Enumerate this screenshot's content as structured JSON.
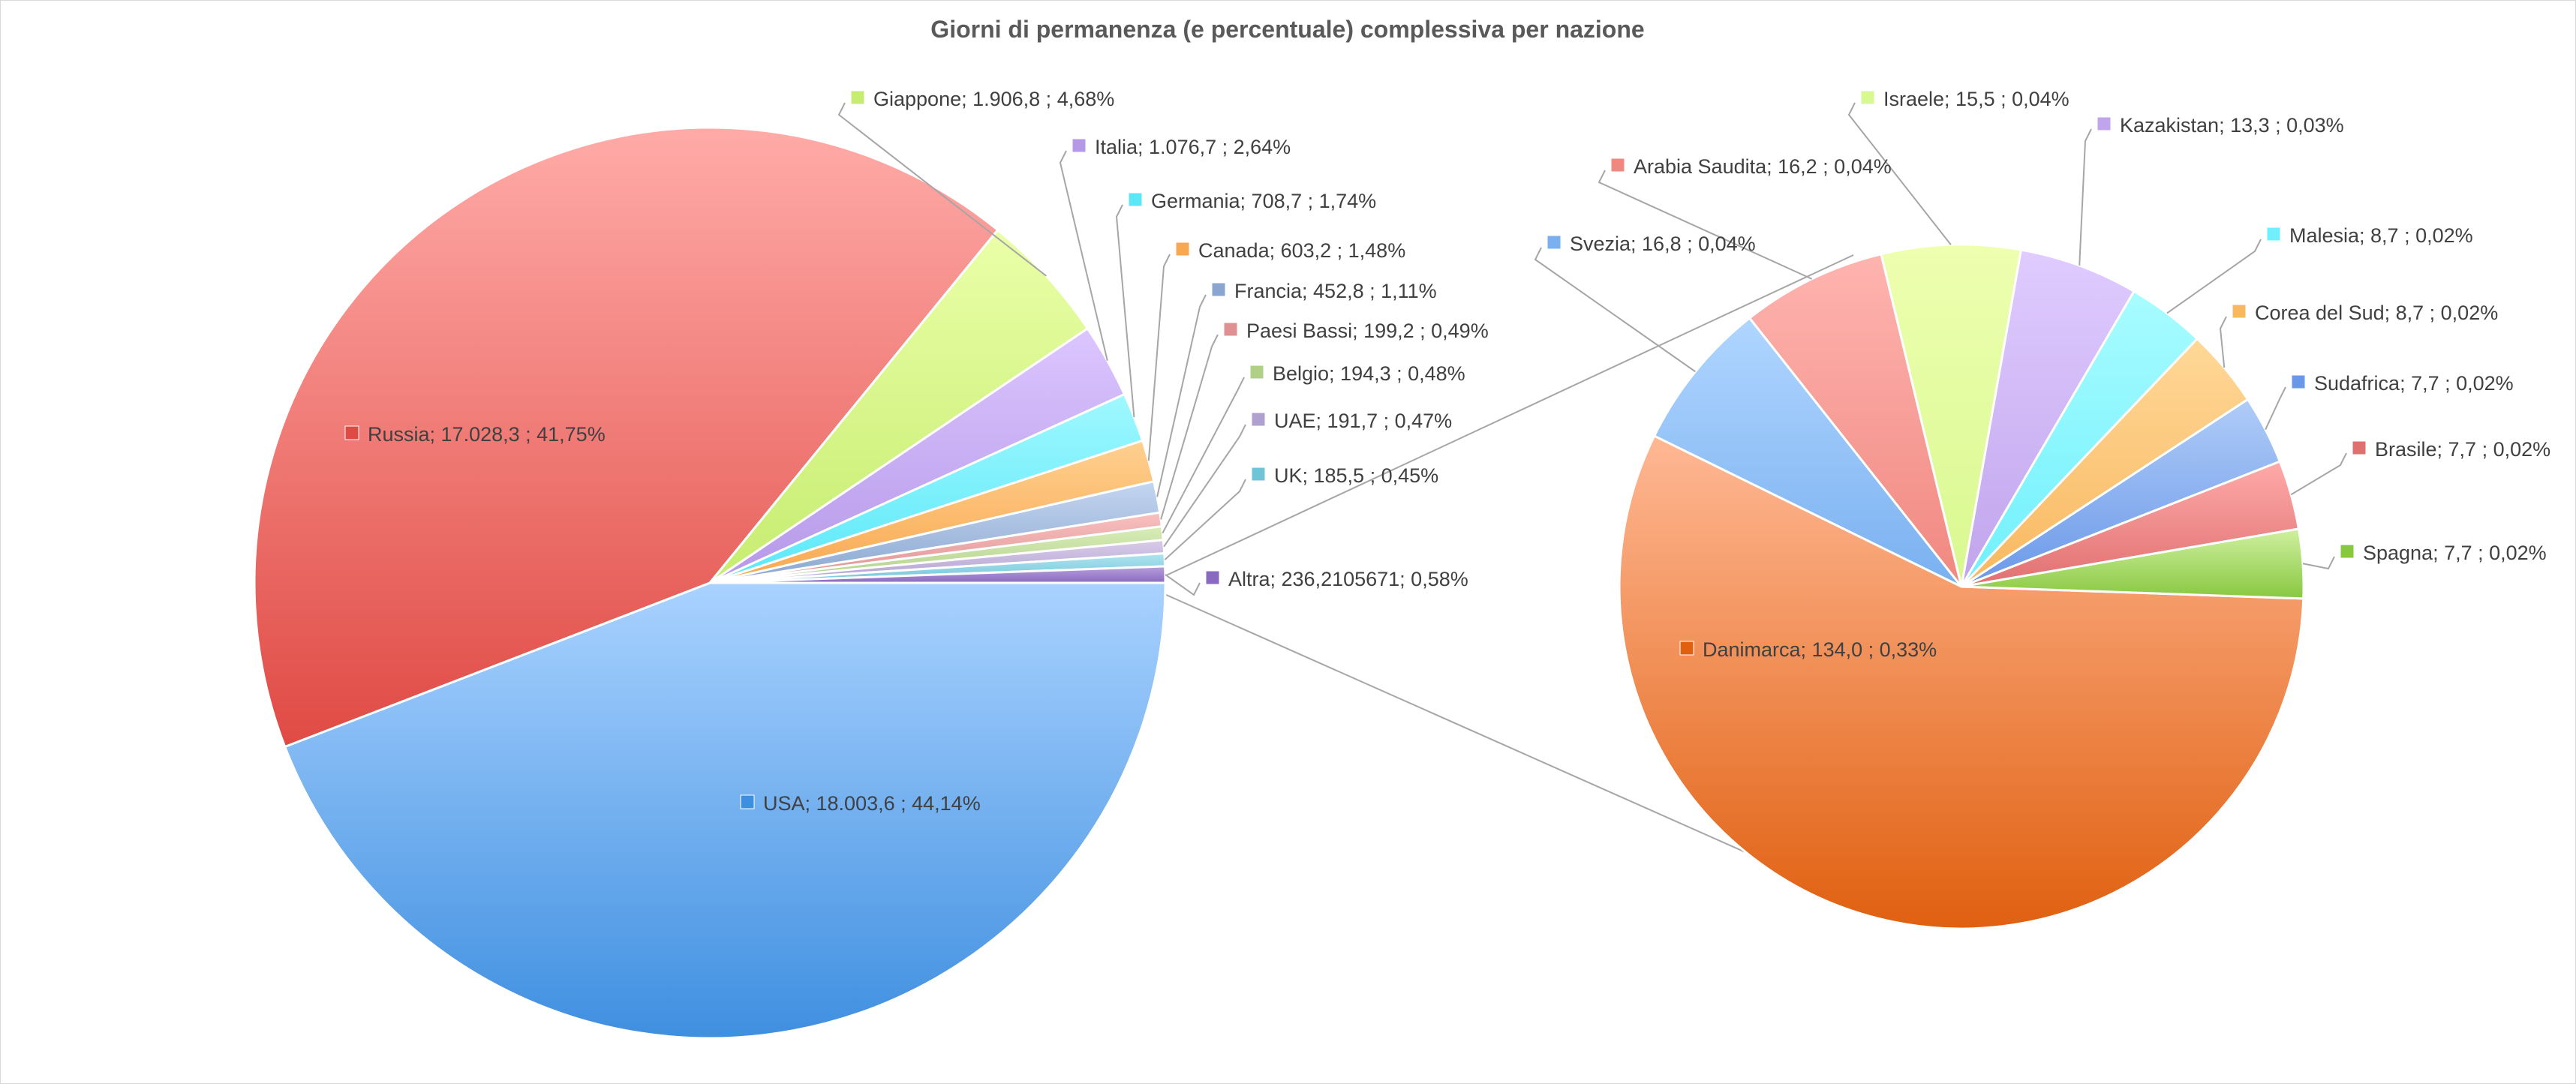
{
  "chart_data": {
    "type": "pie",
    "title": "Giorni di permanenza (e percentuale) complessiva per nazione",
    "subtype": "pie-of-pie",
    "main_pie": [
      {
        "name": "USA",
        "value": 18003.6,
        "percent": 44.14,
        "label": "USA;  18.003,6 ; 44,14%",
        "color": "#a9d2ff",
        "color_dark": "#3f8fe0"
      },
      {
        "name": "Russia",
        "value": 17028.3,
        "percent": 41.75,
        "label": "Russia;  17.028,3 ; 41,75%",
        "color": "#ffaba8",
        "color_dark": "#e04a44"
      },
      {
        "name": "Giappone",
        "value": 1906.8,
        "percent": 4.68,
        "label": "Giappone;  1.906,8 ; 4,68%",
        "color": "#eaffa8",
        "color_dark": "#c6ec70"
      },
      {
        "name": "Italia",
        "value": 1076.7,
        "percent": 2.64,
        "label": "Italia;  1.076,7 ; 2,64%",
        "color": "#dcc6ff",
        "color_dark": "#b598e8"
      },
      {
        "name": "Germania",
        "value": 708.7,
        "percent": 1.74,
        "label": "Germania;  708,7 ; 1,74%",
        "color": "#a0f8ff",
        "color_dark": "#5ae8f8"
      },
      {
        "name": "Canada",
        "value": 603.2,
        "percent": 1.48,
        "label": "Canada;  603,2 ; 1,48%",
        "color": "#ffd090",
        "color_dark": "#f8a850"
      },
      {
        "name": "Francia",
        "value": 452.8,
        "percent": 1.11,
        "label": "Francia;  452,8 ; 1,11%",
        "color": "#c4d6f0",
        "color_dark": "#8aa6d0"
      },
      {
        "name": "Paesi Bassi",
        "value": 199.2,
        "percent": 0.49,
        "label": "Paesi Bassi;  199,2 ; 0,49%",
        "color": "#f8c0c0",
        "color_dark": "#e09090"
      },
      {
        "name": "Belgio",
        "value": 194.3,
        "percent": 0.48,
        "label": "Belgio;  194,3 ; 0,48%",
        "color": "#d8ecb8",
        "color_dark": "#b0d088"
      },
      {
        "name": "UAE",
        "value": 191.7,
        "percent": 0.47,
        "label": "UAE;  191,7 ; 0,47%",
        "color": "#d8cce8",
        "color_dark": "#b0a0d0"
      },
      {
        "name": "UK",
        "value": 185.5,
        "percent": 0.45,
        "label": "UK;  185,5 ; 0,45%",
        "color": "#b0e4f0",
        "color_dark": "#70c4d8"
      },
      {
        "name": "Altra",
        "value": 236.2105671,
        "percent": 0.58,
        "label": "Altra; 236,2105671; 0,58%",
        "color": "#b8a0dc",
        "color_dark": "#8a6ac0"
      }
    ],
    "secondary_pie": [
      {
        "name": "Danimarca",
        "value": 134.0,
        "percent": 0.33,
        "label": "Danimarca;  134,0 ; 0,33%",
        "color": "#ffb894",
        "color_dark": "#e06010"
      },
      {
        "name": "Svezia",
        "value": 16.8,
        "percent": 0.04,
        "label": "Svezia;  16,8 ; 0,04%",
        "color": "#b0d6ff",
        "color_dark": "#7ab0f0"
      },
      {
        "name": "Arabia Saudita",
        "value": 16.2,
        "percent": 0.04,
        "label": "Arabia Saudita;  16,2 ; 0,04%",
        "color": "#ffb4b0",
        "color_dark": "#f08880"
      },
      {
        "name": "Israele",
        "value": 15.5,
        "percent": 0.04,
        "label": "Israele;  15,5 ; 0,04%",
        "color": "#eeffb0",
        "color_dark": "#d8f890"
      },
      {
        "name": "Kazakistan",
        "value": 13.3,
        "percent": 0.03,
        "label": "Kazakistan;  13,3 ; 0,03%",
        "color": "#e0ccff",
        "color_dark": "#c0a4ec"
      },
      {
        "name": "Malesia",
        "value": 8.7,
        "percent": 0.02,
        "label": "Malesia;  8,7 ; 0,02%",
        "color": "#a8fcff",
        "color_dark": "#70f0fc"
      },
      {
        "name": "Corea del Sud",
        "value": 8.7,
        "percent": 0.02,
        "label": "Corea del Sud;  8,7 ; 0,02%",
        "color": "#ffd898",
        "color_dark": "#f8b860"
      },
      {
        "name": "Sudafrica",
        "value": 7.7,
        "percent": 0.02,
        "label": "Sudafrica;  7,7 ; 0,02%",
        "color": "#b0ccf8",
        "color_dark": "#6a98e8"
      },
      {
        "name": "Brasile",
        "value": 7.7,
        "percent": 0.02,
        "label": "Brasile;  7,7 ; 0,02%",
        "color": "#ffaaaa",
        "color_dark": "#e07070"
      },
      {
        "name": "Spagna",
        "value": 7.7,
        "percent": 0.02,
        "label": "Spagna;  7,7 ; 0,02%",
        "color": "#d0f0a0",
        "color_dark": "#88c840"
      }
    ],
    "legend": "none"
  }
}
